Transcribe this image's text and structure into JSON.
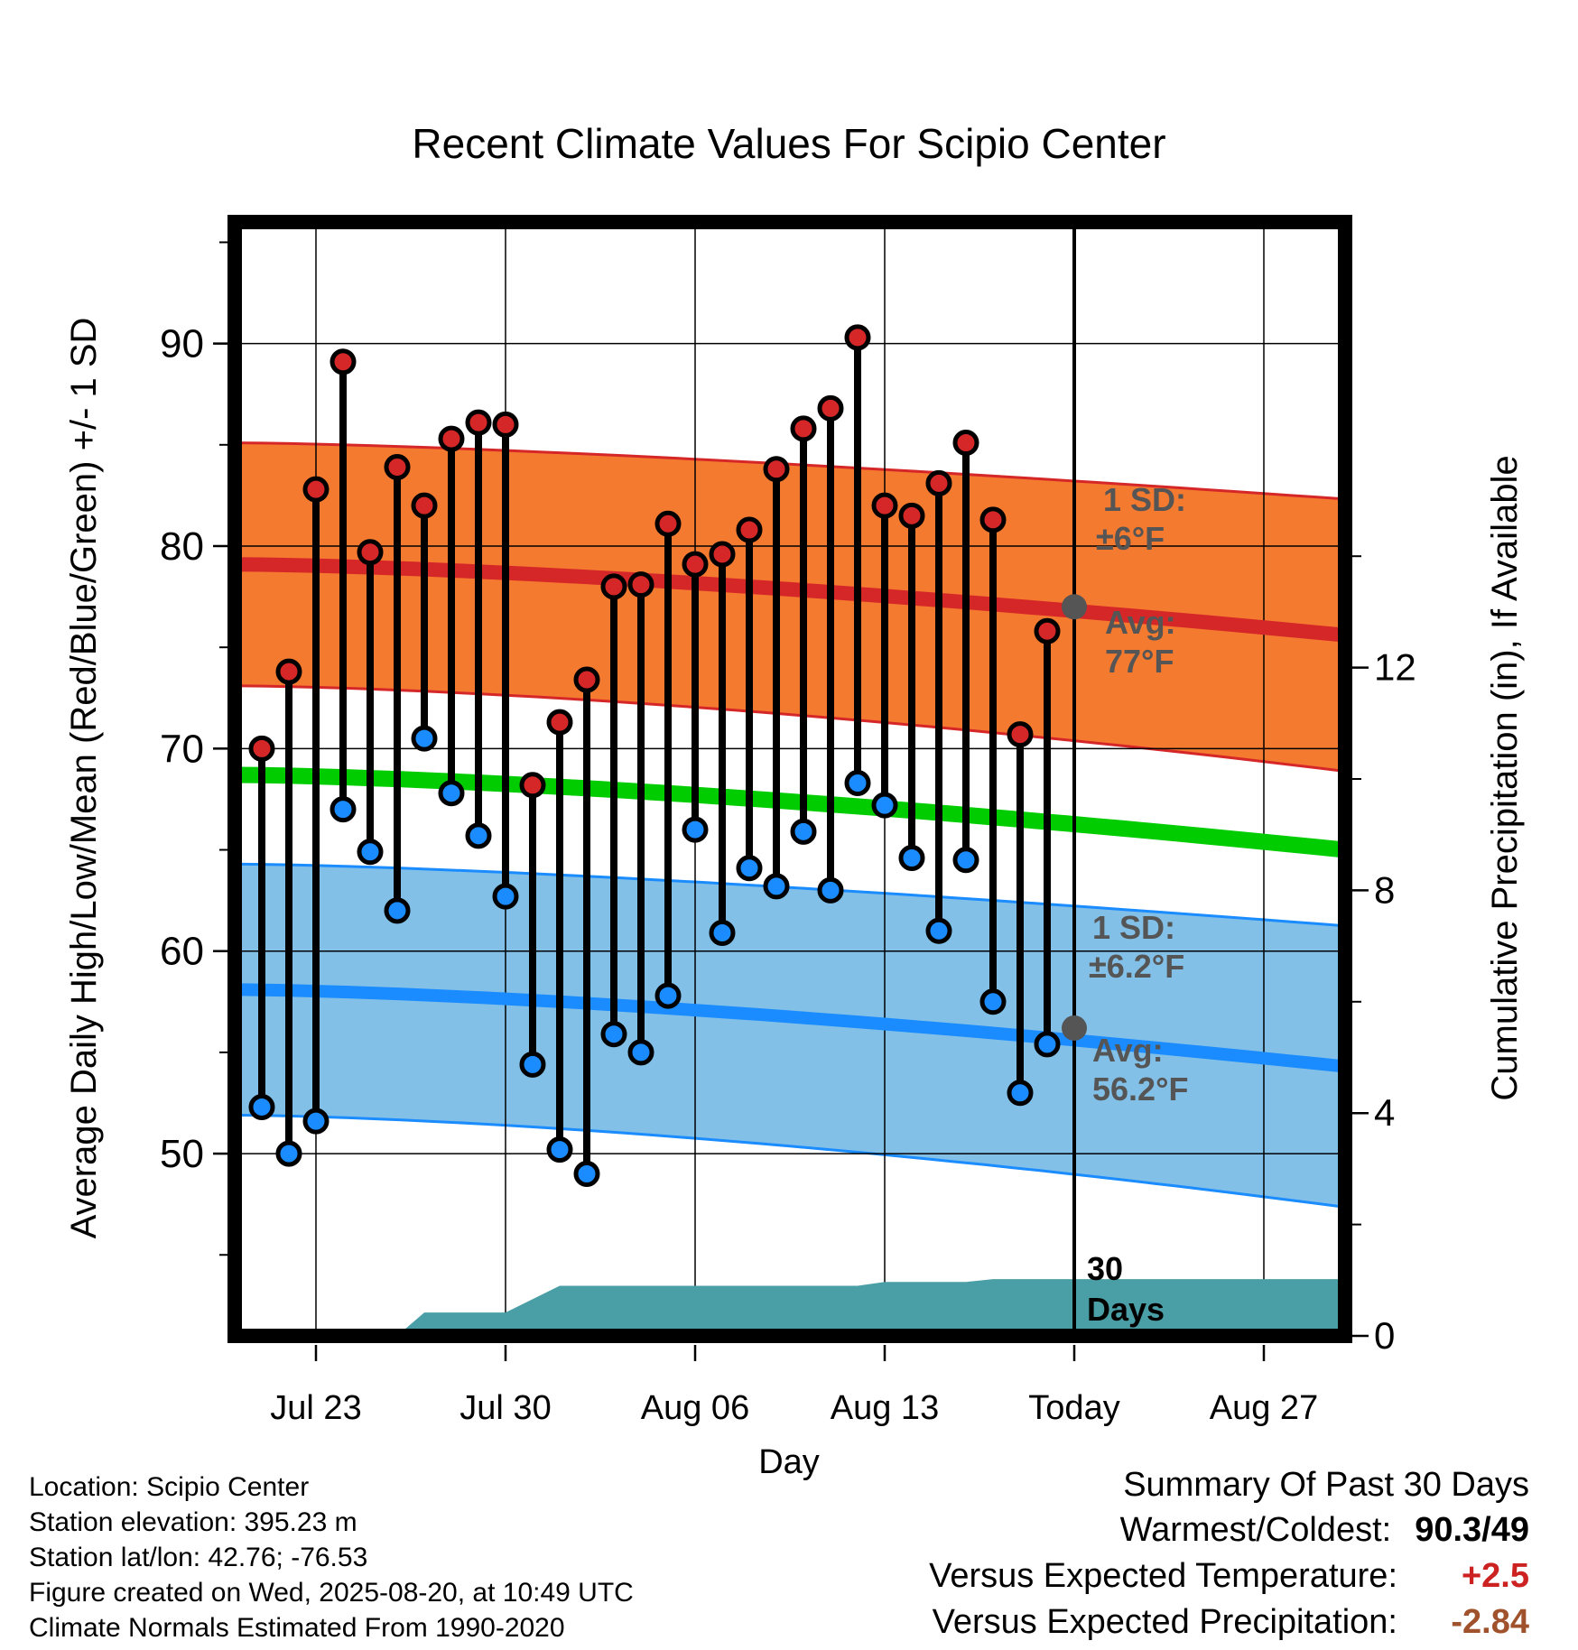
{
  "chart_data": {
    "type": "line",
    "title": "Recent Climate Values For Scipio Center",
    "xlabel": "Day",
    "ylabel": "Average Daily High/Low/Mean (Red/Blue/Green) +/- 1 SD",
    "y2label": "Cumulative Precipitation (in), If Available",
    "ylim": [
      41,
      96
    ],
    "y_ticks": [
      50,
      60,
      70,
      80,
      90
    ],
    "y2lim": [
      0,
      20
    ],
    "y2_ticks": [
      0,
      4,
      8,
      12
    ],
    "x_start": "Jul 20",
    "x_end": "Aug 30",
    "x_ticks": [
      {
        "day": "Jul 23",
        "label": "Jul 23"
      },
      {
        "day": "Jul 30",
        "label": "Jul 30"
      },
      {
        "day": "Aug 06",
        "label": "Aug 06"
      },
      {
        "day": "Aug 13",
        "label": "Aug 13"
      },
      {
        "day": "Aug 20",
        "label": "Today"
      },
      {
        "day": "Aug 27",
        "label": "Aug 27"
      }
    ],
    "today": "Aug 20",
    "normal_high": {
      "start": 79.1,
      "end": 75.6,
      "sd": 6,
      "avg_today": 77,
      "color": "#d62728",
      "band_color": "#f47a30"
    },
    "normal_low": {
      "start": 58.1,
      "end": 54.3,
      "sd": 6.2,
      "avg_today": 56.2,
      "color": "#1a8cff",
      "band_color": "#82c0e8"
    },
    "normal_mean": {
      "start": 68.7,
      "end": 65,
      "color": "#00cc00"
    },
    "observed": {
      "days": [
        "Jul 21",
        "Jul 22",
        "Jul 23",
        "Jul 24",
        "Jul 25",
        "Jul 26",
        "Jul 27",
        "Jul 28",
        "Jul 29",
        "Jul 30",
        "Jul 31",
        "Aug 01",
        "Aug 02",
        "Aug 03",
        "Aug 04",
        "Aug 05",
        "Aug 06",
        "Aug 07",
        "Aug 08",
        "Aug 09",
        "Aug 10",
        "Aug 11",
        "Aug 12",
        "Aug 13",
        "Aug 14",
        "Aug 15",
        "Aug 16",
        "Aug 17",
        "Aug 18",
        "Aug 19"
      ],
      "high": [
        70,
        73.8,
        82.8,
        89.1,
        79.7,
        83.9,
        82,
        85.3,
        86.1,
        86,
        68.2,
        71.3,
        73.4,
        78,
        78.1,
        81.1,
        79.1,
        79.6,
        80.8,
        83.8,
        85.8,
        86.8,
        90.3,
        82,
        81.5,
        83.1,
        85.1,
        81.3,
        70.7,
        75.8
      ],
      "low": [
        52.3,
        50,
        51.6,
        67,
        64.9,
        62,
        70.5,
        67.8,
        65.7,
        62.7,
        54.4,
        50.2,
        49,
        55.9,
        55,
        57.8,
        66,
        60.9,
        64.1,
        63.2,
        65.9,
        63,
        68.3,
        67.2,
        64.6,
        61,
        64.5,
        57.5,
        53,
        55.4
      ]
    },
    "precipitation": {
      "days": [
        "Jul 20",
        "Jul 26",
        "Jul 27",
        "Jul 29",
        "Jul 30",
        "Aug 01",
        "Aug 12",
        "Aug 13",
        "Aug 16",
        "Aug 17",
        "Aug 30"
      ],
      "cumulative": [
        0,
        0,
        0.42,
        0.42,
        0.42,
        0.9,
        0.9,
        0.97,
        0.97,
        1.02,
        1.02
      ],
      "color": "#4a9ea5"
    },
    "annotations": {
      "high_sd_label": "1 SD:",
      "high_sd_value": "±6°F",
      "high_avg_label": "Avg:",
      "high_avg_value": "77°F",
      "low_sd_label": "1 SD:",
      "low_sd_value": "±6.2°F",
      "low_avg_label": "Avg:",
      "low_avg_value": "56.2°F",
      "days_label_1": "30",
      "days_label_2": "Days"
    }
  },
  "footer": {
    "location": "Location: Scipio Center",
    "elevation": "Station elevation: 395.23 m",
    "latlon": "Station lat/lon: 42.76; -76.53",
    "created": "Figure created on Wed, 2025-08-20, at 10:49 UTC",
    "normals": "Climate Normals Estimated From 1990-2020"
  },
  "summary": {
    "title": "Summary Of Past 30 Days",
    "warmest_label": "Warmest/Coldest:",
    "warmest_value": "90.3/49",
    "temp_label": "Versus Expected Temperature:",
    "temp_value": "+2.5",
    "temp_color": "#cc2222",
    "precip_label": "Versus Expected Precipitation:",
    "precip_value": "-2.84",
    "precip_color": "#a0522d"
  }
}
